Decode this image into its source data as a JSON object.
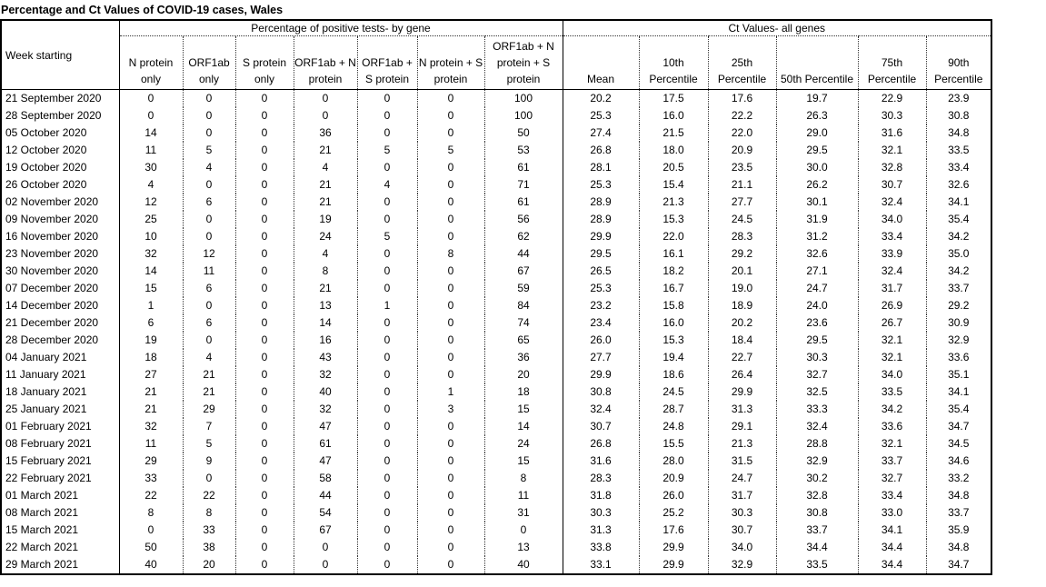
{
  "title": "Percentage and Ct Values of COVID-19 cases, Wales",
  "table": {
    "row_header_label": "Week starting",
    "groups": [
      {
        "label": "Percentage of positive tests- by gene",
        "columns": [
          "N protein only",
          "ORF1ab only",
          "S protein only",
          "ORF1ab + N protein",
          "ORF1ab + S protein",
          "N protein + S protein",
          "ORF1ab + N protein + S protein"
        ]
      },
      {
        "label": "Ct Values- all genes",
        "columns": [
          "Mean",
          "10th Percentile",
          "25th Percentile",
          "50th Percentile",
          "75th Percentile",
          "90th Percentile"
        ]
      }
    ],
    "rows": [
      {
        "week": "21 September 2020",
        "percent": [
          0,
          0,
          0,
          0,
          0,
          0,
          100
        ],
        "ct": [
          "20.2",
          "17.5",
          "17.6",
          "19.7",
          "22.9",
          "23.9"
        ]
      },
      {
        "week": "28 September 2020",
        "percent": [
          0,
          0,
          0,
          0,
          0,
          0,
          100
        ],
        "ct": [
          "25.3",
          "16.0",
          "22.2",
          "26.3",
          "30.3",
          "30.8"
        ]
      },
      {
        "week": "05 October 2020",
        "percent": [
          14,
          0,
          0,
          36,
          0,
          0,
          50
        ],
        "ct": [
          "27.4",
          "21.5",
          "22.0",
          "29.0",
          "31.6",
          "34.8"
        ]
      },
      {
        "week": "12 October 2020",
        "percent": [
          11,
          5,
          0,
          21,
          5,
          5,
          53
        ],
        "ct": [
          "26.8",
          "18.0",
          "20.9",
          "29.5",
          "32.1",
          "33.5"
        ]
      },
      {
        "week": "19 October 2020",
        "percent": [
          30,
          4,
          0,
          4,
          0,
          0,
          61
        ],
        "ct": [
          "28.1",
          "20.5",
          "23.5",
          "30.0",
          "32.8",
          "33.4"
        ]
      },
      {
        "week": "26 October 2020",
        "percent": [
          4,
          0,
          0,
          21,
          4,
          0,
          71
        ],
        "ct": [
          "25.3",
          "15.4",
          "21.1",
          "26.2",
          "30.7",
          "32.6"
        ]
      },
      {
        "week": "02 November 2020",
        "percent": [
          12,
          6,
          0,
          21,
          0,
          0,
          61
        ],
        "ct": [
          "28.9",
          "21.3",
          "27.7",
          "30.1",
          "32.4",
          "34.1"
        ]
      },
      {
        "week": "09 November 2020",
        "percent": [
          25,
          0,
          0,
          19,
          0,
          0,
          56
        ],
        "ct": [
          "28.9",
          "15.3",
          "24.5",
          "31.9",
          "34.0",
          "35.4"
        ]
      },
      {
        "week": "16 November 2020",
        "percent": [
          10,
          0,
          0,
          24,
          5,
          0,
          62
        ],
        "ct": [
          "29.9",
          "22.0",
          "28.3",
          "31.2",
          "33.4",
          "34.2"
        ]
      },
      {
        "week": "23 November 2020",
        "percent": [
          32,
          12,
          0,
          4,
          0,
          8,
          44
        ],
        "ct": [
          "29.5",
          "16.1",
          "29.2",
          "32.6",
          "33.9",
          "35.0"
        ]
      },
      {
        "week": "30 November 2020",
        "percent": [
          14,
          11,
          0,
          8,
          0,
          0,
          67
        ],
        "ct": [
          "26.5",
          "18.2",
          "20.1",
          "27.1",
          "32.4",
          "34.2"
        ]
      },
      {
        "week": "07 December 2020",
        "percent": [
          15,
          6,
          0,
          21,
          0,
          0,
          59
        ],
        "ct": [
          "25.3",
          "16.7",
          "19.0",
          "24.7",
          "31.7",
          "33.7"
        ]
      },
      {
        "week": "14 December 2020",
        "percent": [
          1,
          0,
          0,
          13,
          1,
          0,
          84
        ],
        "ct": [
          "23.2",
          "15.8",
          "18.9",
          "24.0",
          "26.9",
          "29.2"
        ]
      },
      {
        "week": "21 December 2020",
        "percent": [
          6,
          6,
          0,
          14,
          0,
          0,
          74
        ],
        "ct": [
          "23.4",
          "16.0",
          "20.2",
          "23.6",
          "26.7",
          "30.9"
        ]
      },
      {
        "week": "28 December 2020",
        "percent": [
          19,
          0,
          0,
          16,
          0,
          0,
          65
        ],
        "ct": [
          "26.0",
          "15.3",
          "18.4",
          "29.5",
          "32.1",
          "32.9"
        ]
      },
      {
        "week": "04 January 2021",
        "percent": [
          18,
          4,
          0,
          43,
          0,
          0,
          36
        ],
        "ct": [
          "27.7",
          "19.4",
          "22.7",
          "30.3",
          "32.1",
          "33.6"
        ]
      },
      {
        "week": "11 January 2021",
        "percent": [
          27,
          21,
          0,
          32,
          0,
          0,
          20
        ],
        "ct": [
          "29.9",
          "18.6",
          "26.4",
          "32.7",
          "34.0",
          "35.1"
        ]
      },
      {
        "week": "18 January 2021",
        "percent": [
          21,
          21,
          0,
          40,
          0,
          1,
          18
        ],
        "ct": [
          "30.8",
          "24.5",
          "29.9",
          "32.5",
          "33.5",
          "34.1"
        ]
      },
      {
        "week": "25 January 2021",
        "percent": [
          21,
          29,
          0,
          32,
          0,
          3,
          15
        ],
        "ct": [
          "32.4",
          "28.7",
          "31.3",
          "33.3",
          "34.2",
          "35.4"
        ]
      },
      {
        "week": "01 February 2021",
        "percent": [
          32,
          7,
          0,
          47,
          0,
          0,
          14
        ],
        "ct": [
          "30.7",
          "24.8",
          "29.1",
          "32.4",
          "33.6",
          "34.7"
        ]
      },
      {
        "week": "08 February 2021",
        "percent": [
          11,
          5,
          0,
          61,
          0,
          0,
          24
        ],
        "ct": [
          "26.8",
          "15.5",
          "21.3",
          "28.8",
          "32.1",
          "34.5"
        ]
      },
      {
        "week": "15 February 2021",
        "percent": [
          29,
          9,
          0,
          47,
          0,
          0,
          15
        ],
        "ct": [
          "31.6",
          "28.0",
          "31.5",
          "32.9",
          "33.7",
          "34.6"
        ]
      },
      {
        "week": "22 February 2021",
        "percent": [
          33,
          0,
          0,
          58,
          0,
          0,
          8
        ],
        "ct": [
          "28.3",
          "20.9",
          "24.7",
          "30.2",
          "32.7",
          "33.2"
        ]
      },
      {
        "week": "01 March 2021",
        "percent": [
          22,
          22,
          0,
          44,
          0,
          0,
          11
        ],
        "ct": [
          "31.8",
          "26.0",
          "31.7",
          "32.8",
          "33.4",
          "34.8"
        ]
      },
      {
        "week": "08 March 2021",
        "percent": [
          8,
          8,
          0,
          54,
          0,
          0,
          31
        ],
        "ct": [
          "30.3",
          "25.2",
          "30.3",
          "30.8",
          "33.0",
          "33.7"
        ]
      },
      {
        "week": "15 March 2021",
        "percent": [
          0,
          33,
          0,
          67,
          0,
          0,
          0
        ],
        "ct": [
          "31.3",
          "17.6",
          "30.7",
          "33.7",
          "34.1",
          "35.9"
        ]
      },
      {
        "week": "22 March 2021",
        "percent": [
          50,
          38,
          0,
          0,
          0,
          0,
          13
        ],
        "ct": [
          "33.8",
          "29.9",
          "34.0",
          "34.4",
          "34.4",
          "34.8"
        ]
      },
      {
        "week": "29 March 2021",
        "percent": [
          40,
          20,
          0,
          0,
          0,
          0,
          40
        ],
        "ct": [
          "33.1",
          "29.9",
          "32.9",
          "33.5",
          "34.4",
          "34.7"
        ]
      }
    ]
  }
}
